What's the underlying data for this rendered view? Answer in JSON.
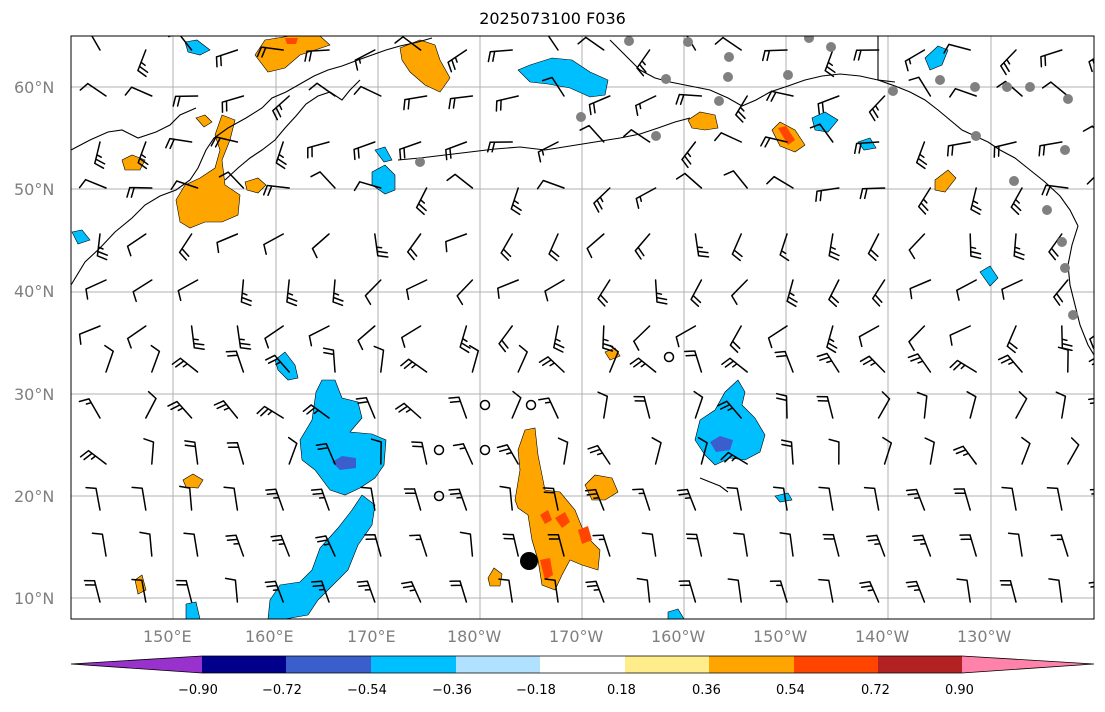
{
  "title": "2025073100 F036",
  "map": {
    "lat_labels": [
      "60°N",
      "50°N",
      "40°N",
      "30°N",
      "20°N",
      "10°N"
    ],
    "lon_labels": [
      "150°E",
      "160°E",
      "170°E",
      "180°W",
      "170°W",
      "160°W",
      "150°W",
      "140°W",
      "130°W"
    ],
    "colors": {
      "orange": "#ffa500",
      "red_orange": "#ff4500",
      "deep_sky_blue": "#00bfff",
      "royal_blue": "#3a5fcd",
      "gridline": "#b0b0b0",
      "station_marker": "#808080"
    }
  },
  "colorbar": {
    "labels": [
      "−0.90",
      "−0.72",
      "−0.54",
      "−0.36",
      "−0.18",
      "0.18",
      "0.36",
      "0.54",
      "0.72",
      "0.90"
    ],
    "colors": [
      "#9932cc",
      "#00008b",
      "#3a5fcd",
      "#00bfff",
      "#b0e2ff",
      "#ffffff",
      "#ffec8b",
      "#ffa500",
      "#ff4500",
      "#b22222",
      "#ff82ab",
      "#ff82ab"
    ]
  }
}
